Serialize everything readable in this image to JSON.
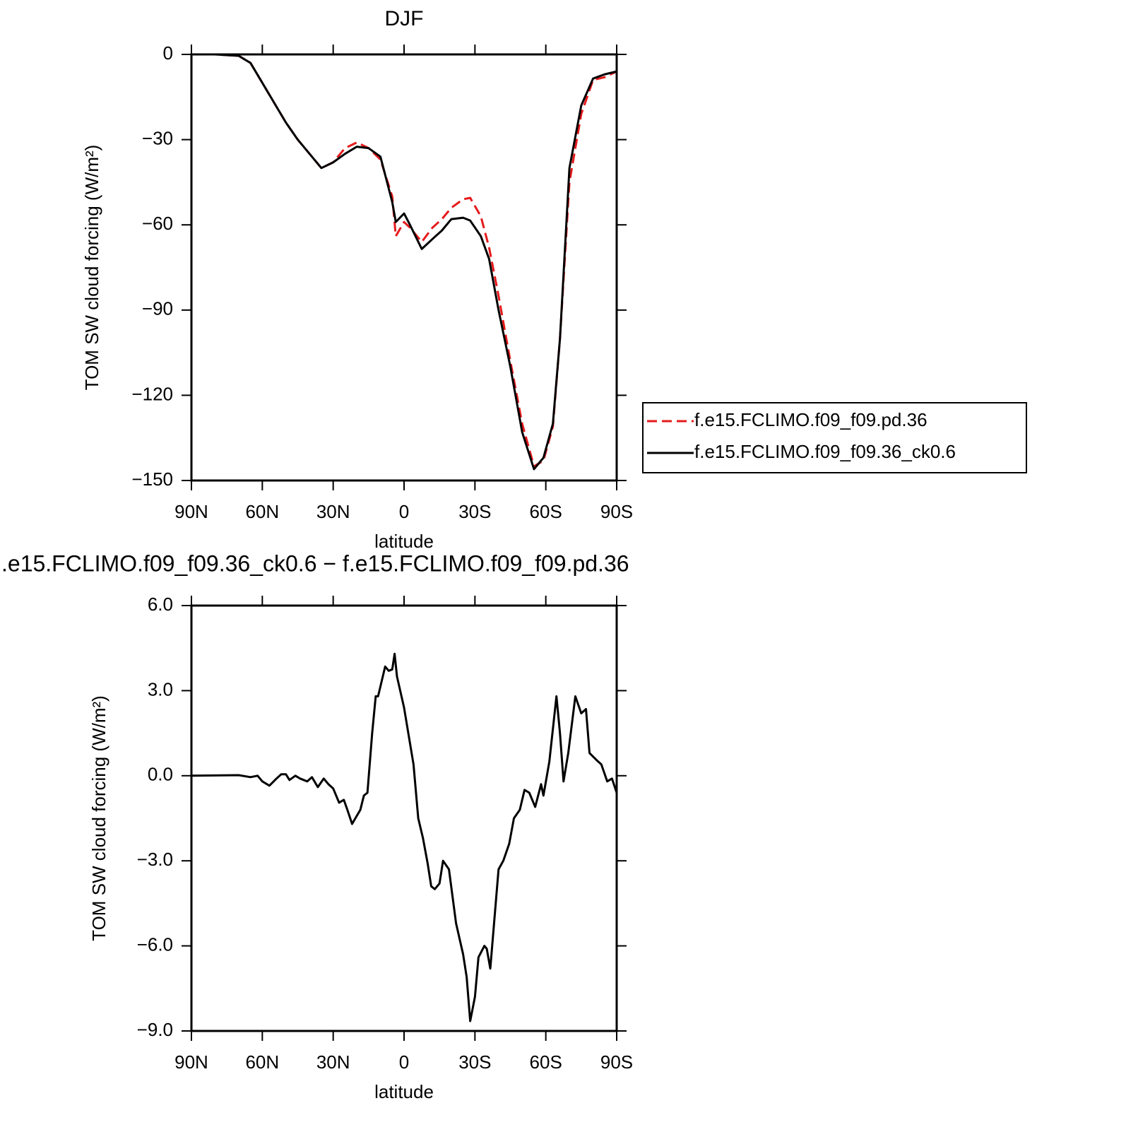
{
  "chart_data": [
    {
      "type": "line",
      "title": "DJF",
      "xlabel": "latitude",
      "ylabel": "TOM SW cloud forcing (W/m²)",
      "x": [
        90,
        80,
        70,
        65,
        60,
        55,
        50,
        45,
        40,
        35,
        30,
        25,
        20,
        15,
        10,
        5,
        3.5,
        0,
        -2.5,
        -7.5,
        -12,
        -16,
        -20,
        -25,
        -28,
        -32.5,
        -36,
        -40,
        -45,
        -50,
        -55,
        -59,
        -63,
        -66,
        -70,
        -75,
        -80,
        -85,
        -90
      ],
      "xlim": [
        90,
        -90
      ],
      "xticks": [
        {
          "value": 90,
          "label": "90N"
        },
        {
          "value": 60,
          "label": "60N"
        },
        {
          "value": 30,
          "label": "30N"
        },
        0,
        {
          "value": -30,
          "label": "30S"
        },
        {
          "value": -60,
          "label": "60S"
        },
        {
          "value": -90,
          "label": "90S"
        }
      ],
      "ylim": [
        -150,
        0
      ],
      "yticks": [
        0,
        {
          "value": -30,
          "label": "−30"
        },
        {
          "value": -60,
          "label": "−60"
        },
        {
          "value": -90,
          "label": "−90"
        },
        {
          "value": -120,
          "label": "−120"
        },
        {
          "value": -150,
          "label": "−150"
        }
      ],
      "legend": "right",
      "series": [
        {
          "name": "f.e15.FCLIMO.f09_f09.pd.36",
          "color": "#e41a1c",
          "dash": "dashed",
          "values": [
            0,
            0,
            -0.5,
            -3,
            -10,
            -17,
            -24,
            -30,
            -35,
            -40,
            -38,
            -33,
            -31,
            -33,
            -37,
            -50,
            -64,
            -59,
            -61,
            -66,
            -61,
            -58,
            -54,
            -51,
            -50.5,
            -57,
            -68,
            -85,
            -108,
            -130,
            -145,
            -143,
            -131,
            -100,
            -45,
            -21,
            -9,
            -8,
            -6
          ]
        },
        {
          "name": "f.e15.FCLIMO.f09_f09.36_ck0.6",
          "color": "#000000",
          "dash": "solid",
          "values": [
            0,
            0,
            -0.5,
            -3,
            -10,
            -17,
            -24,
            -30,
            -35,
            -40,
            -38,
            -35,
            -32.5,
            -33,
            -36,
            -52,
            -59,
            -56,
            -60,
            -68.5,
            -65,
            -62,
            -58,
            -57.5,
            -58.5,
            -64,
            -72,
            -90,
            -110,
            -133,
            -146,
            -142,
            -130,
            -100,
            -40,
            -18,
            -8.5,
            -7,
            -6
          ]
        }
      ]
    },
    {
      "type": "line",
      "title": ".e15.FCLIMO.f09_f09.36_ck0.6 − f.e15.FCLIMO.f09_f09.pd.36",
      "xlabel": "latitude",
      "ylabel": "TOM SW cloud forcing (W/m²)",
      "x": [
        90,
        70,
        65,
        62,
        60,
        57,
        54,
        52,
        50,
        48.5,
        46,
        44,
        41,
        39,
        36.5,
        34,
        32,
        30,
        27.5,
        25.5,
        24,
        22,
        18.5,
        17,
        15.5,
        13.5,
        12,
        11,
        8,
        6.5,
        5,
        4,
        3,
        0,
        -4,
        -6,
        -8,
        -10,
        -11.5,
        -13,
        -15,
        -16.5,
        -19,
        -22,
        -25,
        -26.5,
        -28,
        -30,
        -31.5,
        -34,
        -35,
        -36.5,
        -40,
        -42,
        -44.5,
        -46.5,
        -49,
        -51,
        -53,
        -55.5,
        -58,
        -59,
        -61.5,
        -64.5,
        -66,
        -67.5,
        -69.5,
        -72.5,
        -75,
        -77,
        -78.5,
        -81.5,
        -83.5,
        -86,
        -88,
        -90
      ],
      "xlim": [
        90,
        -90
      ],
      "xticks": [
        {
          "value": 90,
          "label": "90N"
        },
        {
          "value": 60,
          "label": "60N"
        },
        {
          "value": 30,
          "label": "30N"
        },
        0,
        {
          "value": -30,
          "label": "30S"
        },
        {
          "value": -60,
          "label": "60S"
        },
        {
          "value": -90,
          "label": "90S"
        }
      ],
      "ylim": [
        -9,
        6
      ],
      "yticks": [
        {
          "value": 6,
          "label": "6.0"
        },
        {
          "value": 3,
          "label": "3.0"
        },
        {
          "value": 0,
          "label": "0.0"
        },
        {
          "value": -3,
          "label": "−3.0"
        },
        {
          "value": -6,
          "label": "−6.0"
        },
        {
          "value": -9,
          "label": "−9.0"
        }
      ],
      "series": [
        {
          "color": "#000000",
          "dash": "solid",
          "values": [
            0,
            0.02,
            -0.05,
            0,
            -0.2,
            -0.35,
            -0.1,
            0.05,
            0.05,
            -0.15,
            0,
            -0.1,
            -0.2,
            -0.05,
            -0.4,
            -0.1,
            -0.3,
            -0.45,
            -0.95,
            -0.85,
            -1.2,
            -1.7,
            -1.2,
            -0.7,
            -0.6,
            1.5,
            2.8,
            2.8,
            3.85,
            3.7,
            3.75,
            4.3,
            3.5,
            2.4,
            0.4,
            -1.5,
            -2.2,
            -3.1,
            -3.9,
            -4.0,
            -3.8,
            -3.0,
            -3.3,
            -5.2,
            -6.3,
            -7.1,
            -8.65,
            -7.8,
            -6.4,
            -6.0,
            -6.1,
            -6.8,
            -3.3,
            -3.0,
            -2.4,
            -1.5,
            -1.2,
            -0.5,
            -0.6,
            -1.1,
            -0.3,
            -0.7,
            0.5,
            2.8,
            1.5,
            -0.2,
            0.8,
            2.8,
            2.2,
            2.35,
            0.8,
            0.55,
            0.4,
            -0.2,
            -0.1,
            -0.6
          ]
        }
      ]
    }
  ]
}
